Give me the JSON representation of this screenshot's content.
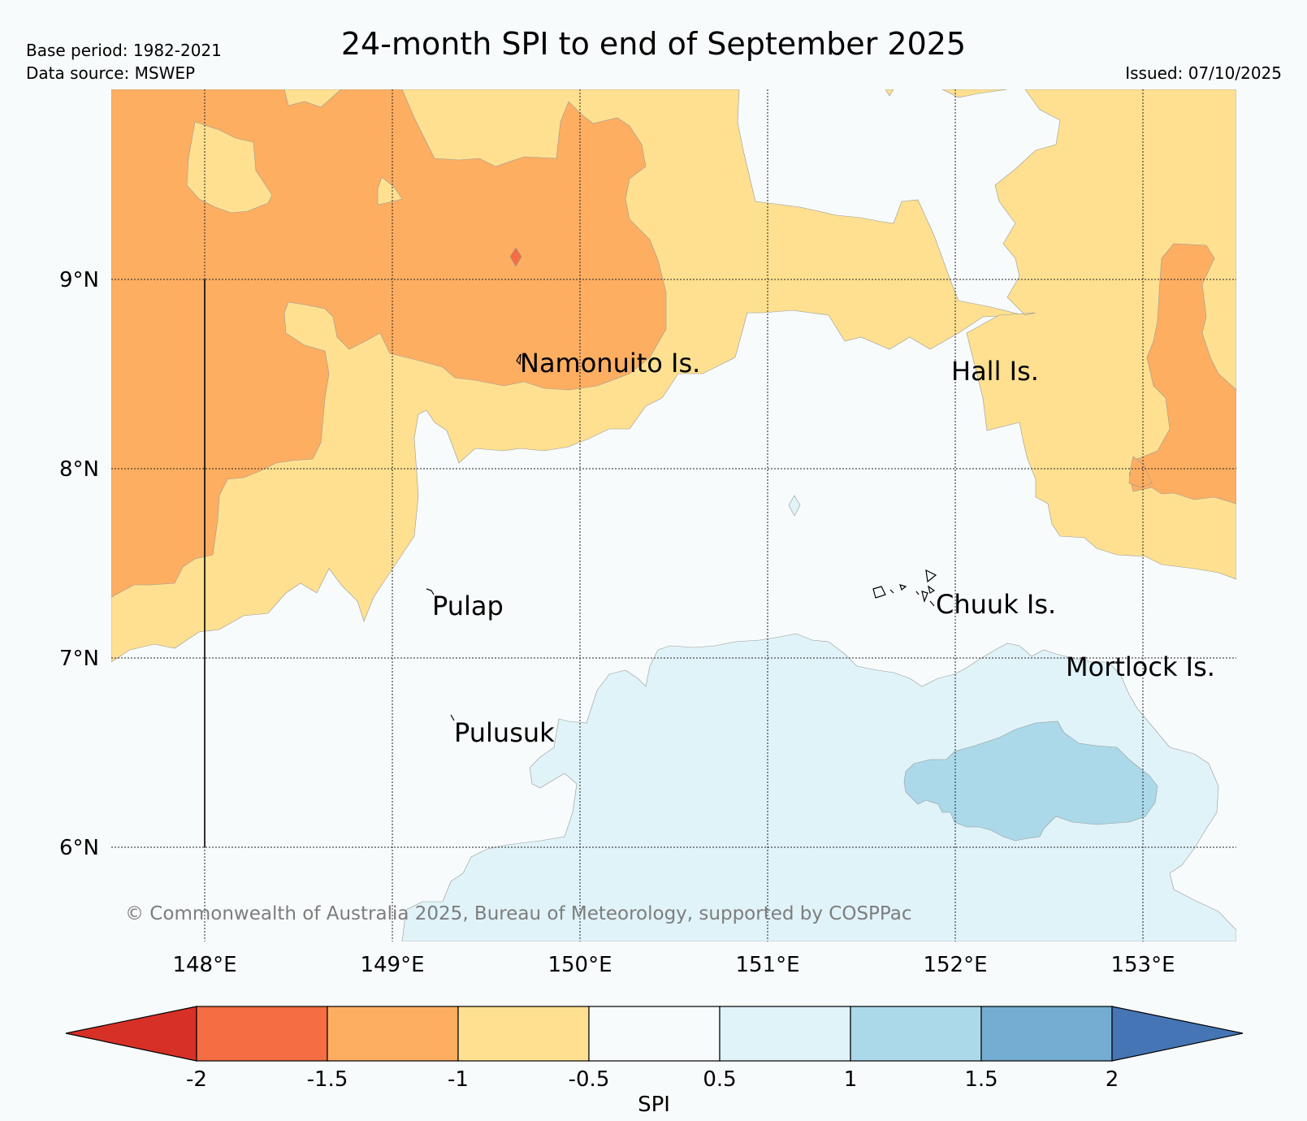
{
  "title": "24-month SPI to end of September 2025",
  "base_period": "Base period: 1982-2021",
  "data_source": "Data source: MSWEP",
  "issued": "Issued: 07/10/2025",
  "copyright": "© Commonwealth of Australia 2025, Bureau of Meteorology, supported by COSPPac",
  "map": {
    "lon_range": [
      147.5,
      153.5
    ],
    "lat_range": [
      5.5,
      10.0
    ],
    "lon_ticks": [
      {
        "value": 148,
        "label": "148°E"
      },
      {
        "value": 149,
        "label": "149°E"
      },
      {
        "value": 150,
        "label": "150°E"
      },
      {
        "value": 151,
        "label": "151°E"
      },
      {
        "value": 152,
        "label": "152°E"
      },
      {
        "value": 153,
        "label": "153°E"
      }
    ],
    "lat_ticks": [
      {
        "value": 9,
        "label": "9°N"
      },
      {
        "value": 8,
        "label": "8°N"
      },
      {
        "value": 7,
        "label": "7°N"
      },
      {
        "value": 6,
        "label": "6°N"
      }
    ],
    "places": [
      {
        "name": "Namonuito Is.",
        "lon": 149.67,
        "lat": 8.6
      },
      {
        "name": "Hall Is.",
        "lon": 151.98,
        "lat": 8.57
      },
      {
        "name": "Pulap",
        "lon": 149.17,
        "lat": 7.32
      },
      {
        "name": "Chuuk Is.",
        "lon": 151.85,
        "lat": 7.36
      },
      {
        "name": "Mortlock Is.",
        "lon": 152.58,
        "lat": 6.99
      },
      {
        "name": "Pulusuk",
        "lon": 149.31,
        "lat": 6.69
      }
    ]
  },
  "colorbar": {
    "label": "SPI",
    "ticks": [
      "-2",
      "-1.5",
      "-1",
      "-0.5",
      "0.5",
      "1",
      "1.5",
      "2"
    ],
    "colors": {
      "below_min": "#d73027",
      "-2_-1.5": "#f46d43",
      "-1.5_-1": "#fdae61",
      "-1_-0.5": "#fee090",
      "-0.5_0.5": "#f7fbfc",
      "0.5_1": "#e0f3f8",
      "1_1.5": "#abd9e9",
      "1.5_2": "#74add1",
      "above_max": "#4575b4"
    }
  }
}
